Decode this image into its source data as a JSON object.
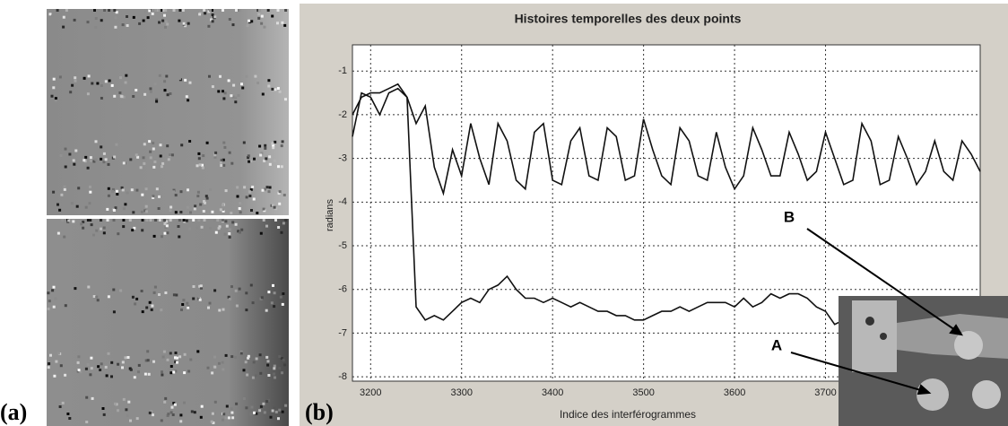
{
  "panel_labels": [
    "(a)",
    "(b)"
  ],
  "chart_data": {
    "type": "line",
    "title": "Histoires temporelles des deux points",
    "x_label": "Indice des interférogrammes",
    "y_label": "radians",
    "x": [
      3180,
      3190,
      3200,
      3210,
      3220,
      3230,
      3240,
      3250,
      3260,
      3270,
      3280,
      3290,
      3300,
      3310,
      3320,
      3330,
      3340,
      3350,
      3360,
      3370,
      3380,
      3390,
      3400,
      3410,
      3420,
      3430,
      3440,
      3450,
      3460,
      3470,
      3480,
      3490,
      3500,
      3510,
      3520,
      3530,
      3540,
      3550,
      3560,
      3570,
      3580,
      3590,
      3600,
      3610,
      3620,
      3630,
      3640,
      3650,
      3660,
      3670,
      3680,
      3690,
      3700,
      3710,
      3720,
      3730,
      3740,
      3750,
      3760,
      3770,
      3780,
      3790,
      3800,
      3810,
      3820,
      3830,
      3840,
      3850,
      3860,
      3870
    ],
    "series": [
      {
        "name": "B",
        "color": "#111111",
        "values": [
          -2.5,
          -1.5,
          -1.6,
          -2.0,
          -1.5,
          -1.4,
          -1.6,
          -2.2,
          -1.8,
          -3.2,
          -3.8,
          -2.8,
          -3.4,
          -2.2,
          -3.0,
          -3.6,
          -2.2,
          -2.6,
          -3.5,
          -3.7,
          -2.4,
          -2.2,
          -3.5,
          -3.6,
          -2.6,
          -2.3,
          -3.4,
          -3.5,
          -2.3,
          -2.5,
          -3.5,
          -3.4,
          -2.1,
          -2.8,
          -3.4,
          -3.6,
          -2.3,
          -2.6,
          -3.4,
          -3.5,
          -2.4,
          -3.2,
          -3.7,
          -3.4,
          -2.3,
          -2.8,
          -3.4,
          -3.4,
          -2.4,
          -2.9,
          -3.5,
          -3.3,
          -2.4,
          -3.0,
          -3.6,
          -3.5,
          -2.2,
          -2.6,
          -3.6,
          -3.5,
          -2.5,
          -3.0,
          -3.6,
          -3.3,
          -2.6,
          -3.3,
          -3.5,
          -2.6,
          -2.9,
          -3.3
        ]
      },
      {
        "name": "A",
        "color": "#111111",
        "values": [
          -2.0,
          -1.6,
          -1.5,
          -1.5,
          -1.4,
          -1.3,
          -1.6,
          -6.4,
          -6.7,
          -6.6,
          -6.7,
          -6.5,
          -6.3,
          -6.2,
          -6.3,
          -6.0,
          -5.9,
          -5.7,
          -6.0,
          -6.2,
          -6.2,
          -6.3,
          -6.2,
          -6.3,
          -6.4,
          -6.3,
          -6.4,
          -6.5,
          -6.5,
          -6.6,
          -6.6,
          -6.7,
          -6.7,
          -6.6,
          -6.5,
          -6.5,
          -6.4,
          -6.5,
          -6.4,
          -6.3,
          -6.3,
          -6.3,
          -6.4,
          -6.2,
          -6.4,
          -6.3,
          -6.1,
          -6.2,
          -6.1,
          -6.1,
          -6.2,
          -6.4,
          -6.5,
          -6.8,
          -6.7,
          null,
          null,
          null,
          null,
          null,
          null,
          null,
          null,
          null,
          null,
          null,
          null,
          null,
          null,
          null
        ]
      }
    ],
    "xlim": [
      3180,
      3870
    ],
    "ylim": [
      -8.1,
      -0.4
    ],
    "xticks": [
      3200,
      3300,
      3400,
      3500,
      3600,
      3700
    ],
    "yticks": [
      -1,
      -2,
      -3,
      -4,
      -5,
      -6,
      -7,
      -8
    ],
    "grid": true
  }
}
